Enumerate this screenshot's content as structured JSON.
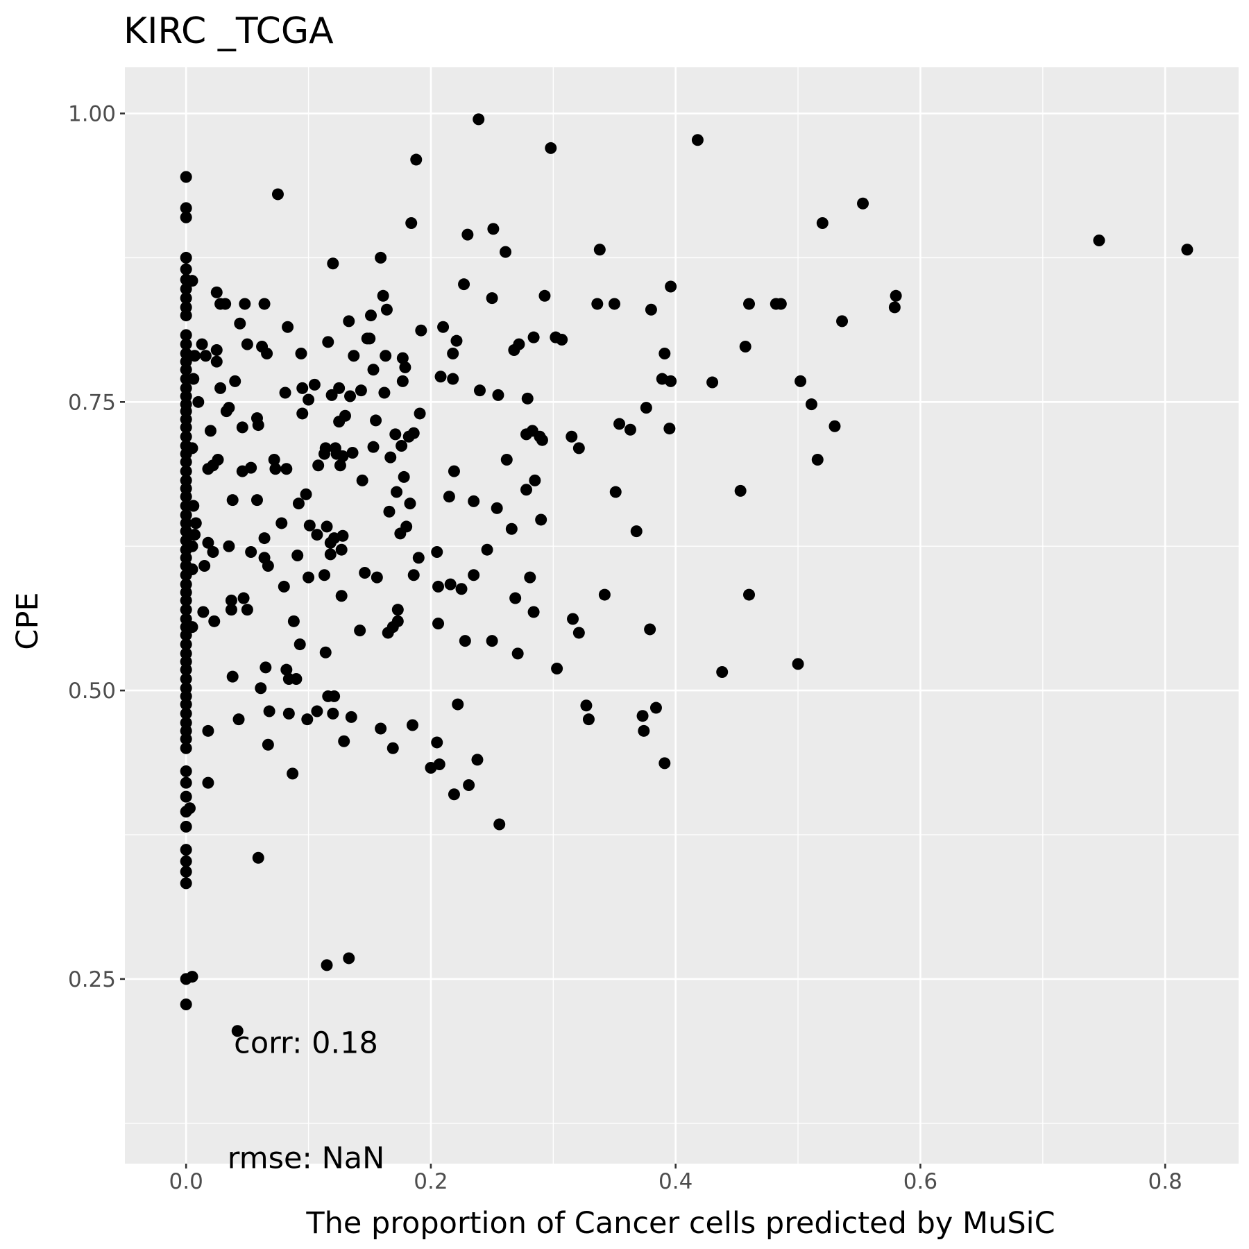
{
  "chart_data": {
    "type": "scatter",
    "title": "KIRC _TCGA",
    "xlabel": "The proportion of Cancer cells predicted by MuSiC",
    "ylabel": "CPE",
    "xlim": [
      -0.05,
      0.86
    ],
    "ylim": [
      0.09,
      1.04
    ],
    "x_ticks": [
      0.0,
      0.2,
      0.4,
      0.6,
      0.8
    ],
    "x_tick_labels": [
      "0.0",
      "0.2",
      "0.4",
      "0.6",
      "0.8"
    ],
    "y_ticks": [
      0.25,
      0.5,
      0.75,
      1.0
    ],
    "y_tick_labels": [
      "0.25",
      "0.50",
      "0.75",
      "1.00"
    ],
    "grid": true,
    "legend": "none",
    "colors": {
      "panel": "#ebebeb",
      "grid": "#ffffff",
      "point": "#000000",
      "tick": "#4d4d4d"
    },
    "annotations": [
      {
        "text": "corr: 0.18",
        "x": 0.098,
        "y": 0.195
      },
      {
        "text": "rmse: NaN",
        "x": 0.098,
        "y": 0.095
      }
    ],
    "points": [
      [
        0.0,
        0.945
      ],
      [
        0.0,
        0.918
      ],
      [
        0.0,
        0.91
      ],
      [
        0.0,
        0.875
      ],
      [
        0.0,
        0.865
      ],
      [
        0.0,
        0.856
      ],
      [
        0.0,
        0.848
      ],
      [
        0.0,
        0.84
      ],
      [
        0.0,
        0.832
      ],
      [
        0.0,
        0.825
      ],
      [
        0.0,
        0.808
      ],
      [
        0.0,
        0.8
      ],
      [
        0.0,
        0.792
      ],
      [
        0.0,
        0.785
      ],
      [
        0.0,
        0.778
      ],
      [
        0.0,
        0.77
      ],
      [
        0.0,
        0.762
      ],
      [
        0.0,
        0.755
      ],
      [
        0.0,
        0.748
      ],
      [
        0.0,
        0.742
      ],
      [
        0.0,
        0.735
      ],
      [
        0.0,
        0.728
      ],
      [
        0.0,
        0.72
      ],
      [
        0.0,
        0.712
      ],
      [
        0.0,
        0.705
      ],
      [
        0.0,
        0.698
      ],
      [
        0.0,
        0.69
      ],
      [
        0.0,
        0.682
      ],
      [
        0.0,
        0.675
      ],
      [
        0.0,
        0.668
      ],
      [
        0.0,
        0.66
      ],
      [
        0.0,
        0.652
      ],
      [
        0.0,
        0.645
      ],
      [
        0.0,
        0.638
      ],
      [
        0.0,
        0.63
      ],
      [
        0.0,
        0.622
      ],
      [
        0.0,
        0.615
      ],
      [
        0.0,
        0.608
      ],
      [
        0.0,
        0.6
      ],
      [
        0.0,
        0.592
      ],
      [
        0.0,
        0.585
      ],
      [
        0.0,
        0.578
      ],
      [
        0.0,
        0.57
      ],
      [
        0.0,
        0.562
      ],
      [
        0.0,
        0.555
      ],
      [
        0.0,
        0.548
      ],
      [
        0.0,
        0.54
      ],
      [
        0.0,
        0.532
      ],
      [
        0.0,
        0.525
      ],
      [
        0.0,
        0.518
      ],
      [
        0.0,
        0.51
      ],
      [
        0.0,
        0.502
      ],
      [
        0.0,
        0.495
      ],
      [
        0.0,
        0.488
      ],
      [
        0.0,
        0.48
      ],
      [
        0.0,
        0.472
      ],
      [
        0.0,
        0.465
      ],
      [
        0.0,
        0.458
      ],
      [
        0.0,
        0.45
      ],
      [
        0.0,
        0.43
      ],
      [
        0.0,
        0.42
      ],
      [
        0.0,
        0.408
      ],
      [
        0.0,
        0.395
      ],
      [
        0.0,
        0.382
      ],
      [
        0.0,
        0.362
      ],
      [
        0.0,
        0.352
      ],
      [
        0.0,
        0.343
      ],
      [
        0.0,
        0.333
      ],
      [
        0.0,
        0.25
      ],
      [
        0.0,
        0.228
      ],
      [
        0.005,
        0.252
      ],
      [
        0.005,
        0.855
      ],
      [
        0.007,
        0.79
      ],
      [
        0.006,
        0.77
      ],
      [
        0.005,
        0.71
      ],
      [
        0.006,
        0.66
      ],
      [
        0.008,
        0.645
      ],
      [
        0.007,
        0.635
      ],
      [
        0.005,
        0.625
      ],
      [
        0.005,
        0.605
      ],
      [
        0.005,
        0.555
      ],
      [
        0.003,
        0.398
      ],
      [
        0.01,
        0.75
      ],
      [
        0.013,
        0.8
      ],
      [
        0.016,
        0.79
      ],
      [
        0.015,
        0.608
      ],
      [
        0.014,
        0.568
      ],
      [
        0.018,
        0.692
      ],
      [
        0.018,
        0.628
      ],
      [
        0.018,
        0.465
      ],
      [
        0.018,
        0.42
      ],
      [
        0.02,
        0.725
      ],
      [
        0.022,
        0.695
      ],
      [
        0.022,
        0.62
      ],
      [
        0.023,
        0.56
      ],
      [
        0.025,
        0.845
      ],
      [
        0.025,
        0.785
      ],
      [
        0.025,
        0.795
      ],
      [
        0.026,
        0.7
      ],
      [
        0.028,
        0.835
      ],
      [
        0.028,
        0.762
      ],
      [
        0.032,
        0.835
      ],
      [
        0.033,
        0.742
      ],
      [
        0.035,
        0.745
      ],
      [
        0.035,
        0.625
      ],
      [
        0.037,
        0.57
      ],
      [
        0.037,
        0.578
      ],
      [
        0.038,
        0.665
      ],
      [
        0.038,
        0.512
      ],
      [
        0.04,
        0.768
      ],
      [
        0.042,
        0.205
      ],
      [
        0.043,
        0.475
      ],
      [
        0.044,
        0.818
      ],
      [
        0.046,
        0.728
      ],
      [
        0.046,
        0.69
      ],
      [
        0.047,
        0.58
      ],
      [
        0.048,
        0.835
      ],
      [
        0.05,
        0.57
      ],
      [
        0.05,
        0.8
      ],
      [
        0.053,
        0.693
      ],
      [
        0.053,
        0.62
      ],
      [
        0.058,
        0.736
      ],
      [
        0.058,
        0.665
      ],
      [
        0.059,
        0.73
      ],
      [
        0.059,
        0.355
      ],
      [
        0.061,
        0.502
      ],
      [
        0.062,
        0.798
      ],
      [
        0.064,
        0.835
      ],
      [
        0.064,
        0.615
      ],
      [
        0.064,
        0.632
      ],
      [
        0.065,
        0.52
      ],
      [
        0.066,
        0.792
      ],
      [
        0.067,
        0.608
      ],
      [
        0.067,
        0.453
      ],
      [
        0.068,
        0.482
      ],
      [
        0.072,
        0.7
      ],
      [
        0.073,
        0.692
      ],
      [
        0.075,
        0.93
      ],
      [
        0.078,
        0.645
      ],
      [
        0.08,
        0.59
      ],
      [
        0.081,
        0.758
      ],
      [
        0.082,
        0.692
      ],
      [
        0.082,
        0.518
      ],
      [
        0.083,
        0.815
      ],
      [
        0.084,
        0.51
      ],
      [
        0.084,
        0.48
      ],
      [
        0.087,
        0.428
      ],
      [
        0.088,
        0.56
      ],
      [
        0.09,
        0.51
      ],
      [
        0.091,
        0.617
      ],
      [
        0.092,
        0.662
      ],
      [
        0.093,
        0.54
      ],
      [
        0.094,
        0.792
      ],
      [
        0.095,
        0.762
      ],
      [
        0.095,
        0.74
      ],
      [
        0.098,
        0.67
      ],
      [
        0.099,
        0.475
      ],
      [
        0.1,
        0.752
      ],
      [
        0.1,
        0.598
      ],
      [
        0.101,
        0.643
      ],
      [
        0.105,
        0.765
      ],
      [
        0.107,
        0.635
      ],
      [
        0.107,
        0.482
      ],
      [
        0.108,
        0.695
      ],
      [
        0.113,
        0.705
      ],
      [
        0.113,
        0.6
      ],
      [
        0.114,
        0.71
      ],
      [
        0.114,
        0.533
      ],
      [
        0.115,
        0.642
      ],
      [
        0.115,
        0.262
      ],
      [
        0.116,
        0.495
      ],
      [
        0.116,
        0.802
      ],
      [
        0.118,
        0.628
      ],
      [
        0.118,
        0.618
      ],
      [
        0.119,
        0.756
      ],
      [
        0.12,
        0.87
      ],
      [
        0.12,
        0.48
      ],
      [
        0.121,
        0.495
      ],
      [
        0.121,
        0.632
      ],
      [
        0.122,
        0.71
      ],
      [
        0.123,
        0.705
      ],
      [
        0.125,
        0.733
      ],
      [
        0.125,
        0.762
      ],
      [
        0.126,
        0.695
      ],
      [
        0.127,
        0.582
      ],
      [
        0.127,
        0.622
      ],
      [
        0.128,
        0.703
      ],
      [
        0.128,
        0.634
      ],
      [
        0.129,
        0.456
      ],
      [
        0.13,
        0.738
      ],
      [
        0.133,
        0.268
      ],
      [
        0.133,
        0.82
      ],
      [
        0.134,
        0.755
      ],
      [
        0.135,
        0.477
      ],
      [
        0.136,
        0.706
      ],
      [
        0.137,
        0.79
      ],
      [
        0.142,
        0.552
      ],
      [
        0.143,
        0.76
      ],
      [
        0.144,
        0.682
      ],
      [
        0.146,
        0.602
      ],
      [
        0.148,
        0.805
      ],
      [
        0.15,
        0.805
      ],
      [
        0.151,
        0.825
      ],
      [
        0.153,
        0.778
      ],
      [
        0.153,
        0.711
      ],
      [
        0.155,
        0.734
      ],
      [
        0.156,
        0.598
      ],
      [
        0.159,
        0.467
      ],
      [
        0.159,
        0.875
      ],
      [
        0.161,
        0.842
      ],
      [
        0.162,
        0.758
      ],
      [
        0.163,
        0.79
      ],
      [
        0.164,
        0.83
      ],
      [
        0.165,
        0.55
      ],
      [
        0.166,
        0.655
      ],
      [
        0.167,
        0.702
      ],
      [
        0.169,
        0.555
      ],
      [
        0.169,
        0.45
      ],
      [
        0.171,
        0.722
      ],
      [
        0.172,
        0.672
      ],
      [
        0.173,
        0.56
      ],
      [
        0.173,
        0.57
      ],
      [
        0.175,
        0.636
      ],
      [
        0.176,
        0.712
      ],
      [
        0.177,
        0.768
      ],
      [
        0.177,
        0.788
      ],
      [
        0.178,
        0.685
      ],
      [
        0.179,
        0.78
      ],
      [
        0.18,
        0.642
      ],
      [
        0.182,
        0.72
      ],
      [
        0.183,
        0.662
      ],
      [
        0.184,
        0.905
      ],
      [
        0.185,
        0.47
      ],
      [
        0.186,
        0.723
      ],
      [
        0.186,
        0.6
      ],
      [
        0.188,
        0.96
      ],
      [
        0.19,
        0.615
      ],
      [
        0.191,
        0.74
      ],
      [
        0.192,
        0.812
      ],
      [
        0.2,
        0.433
      ],
      [
        0.205,
        0.455
      ],
      [
        0.205,
        0.62
      ],
      [
        0.206,
        0.558
      ],
      [
        0.206,
        0.59
      ],
      [
        0.207,
        0.436
      ],
      [
        0.208,
        0.772
      ],
      [
        0.21,
        0.815
      ],
      [
        0.215,
        0.668
      ],
      [
        0.216,
        0.592
      ],
      [
        0.218,
        0.792
      ],
      [
        0.218,
        0.77
      ],
      [
        0.219,
        0.69
      ],
      [
        0.219,
        0.41
      ],
      [
        0.221,
        0.803
      ],
      [
        0.222,
        0.488
      ],
      [
        0.225,
        0.588
      ],
      [
        0.227,
        0.852
      ],
      [
        0.228,
        0.543
      ],
      [
        0.23,
        0.895
      ],
      [
        0.231,
        0.418
      ],
      [
        0.235,
        0.6
      ],
      [
        0.235,
        0.664
      ],
      [
        0.238,
        0.44
      ],
      [
        0.239,
        0.995
      ],
      [
        0.24,
        0.76
      ],
      [
        0.246,
        0.622
      ],
      [
        0.25,
        0.543
      ],
      [
        0.25,
        0.84
      ],
      [
        0.251,
        0.9
      ],
      [
        0.254,
        0.658
      ],
      [
        0.255,
        0.756
      ],
      [
        0.256,
        0.384
      ],
      [
        0.261,
        0.88
      ],
      [
        0.262,
        0.7
      ],
      [
        0.266,
        0.64
      ],
      [
        0.268,
        0.795
      ],
      [
        0.269,
        0.58
      ],
      [
        0.271,
        0.532
      ],
      [
        0.272,
        0.8
      ],
      [
        0.278,
        0.722
      ],
      [
        0.278,
        0.674
      ],
      [
        0.279,
        0.753
      ],
      [
        0.281,
        0.598
      ],
      [
        0.283,
        0.725
      ],
      [
        0.284,
        0.806
      ],
      [
        0.284,
        0.568
      ],
      [
        0.285,
        0.682
      ],
      [
        0.289,
        0.72
      ],
      [
        0.29,
        0.648
      ],
      [
        0.291,
        0.717
      ],
      [
        0.293,
        0.842
      ],
      [
        0.298,
        0.97
      ],
      [
        0.302,
        0.806
      ],
      [
        0.303,
        0.519
      ],
      [
        0.307,
        0.804
      ],
      [
        0.315,
        0.72
      ],
      [
        0.316,
        0.562
      ],
      [
        0.321,
        0.71
      ],
      [
        0.321,
        0.55
      ],
      [
        0.327,
        0.487
      ],
      [
        0.329,
        0.475
      ],
      [
        0.336,
        0.835
      ],
      [
        0.338,
        0.882
      ],
      [
        0.342,
        0.583
      ],
      [
        0.35,
        0.835
      ],
      [
        0.351,
        0.672
      ],
      [
        0.354,
        0.731
      ],
      [
        0.363,
        0.726
      ],
      [
        0.368,
        0.638
      ],
      [
        0.373,
        0.478
      ],
      [
        0.374,
        0.465
      ],
      [
        0.376,
        0.745
      ],
      [
        0.379,
        0.553
      ],
      [
        0.38,
        0.83
      ],
      [
        0.384,
        0.485
      ],
      [
        0.389,
        0.77
      ],
      [
        0.391,
        0.792
      ],
      [
        0.391,
        0.437
      ],
      [
        0.395,
        0.727
      ],
      [
        0.396,
        0.85
      ],
      [
        0.396,
        0.768
      ],
      [
        0.418,
        0.977
      ],
      [
        0.43,
        0.767
      ],
      [
        0.438,
        0.516
      ],
      [
        0.453,
        0.673
      ],
      [
        0.457,
        0.798
      ],
      [
        0.46,
        0.835
      ],
      [
        0.46,
        0.583
      ],
      [
        0.482,
        0.835
      ],
      [
        0.486,
        0.835
      ],
      [
        0.5,
        0.523
      ],
      [
        0.502,
        0.768
      ],
      [
        0.511,
        0.748
      ],
      [
        0.516,
        0.7
      ],
      [
        0.52,
        0.905
      ],
      [
        0.53,
        0.729
      ],
      [
        0.536,
        0.82
      ],
      [
        0.553,
        0.922
      ],
      [
        0.579,
        0.832
      ],
      [
        0.58,
        0.842
      ],
      [
        0.746,
        0.89
      ],
      [
        0.818,
        0.882
      ]
    ]
  }
}
